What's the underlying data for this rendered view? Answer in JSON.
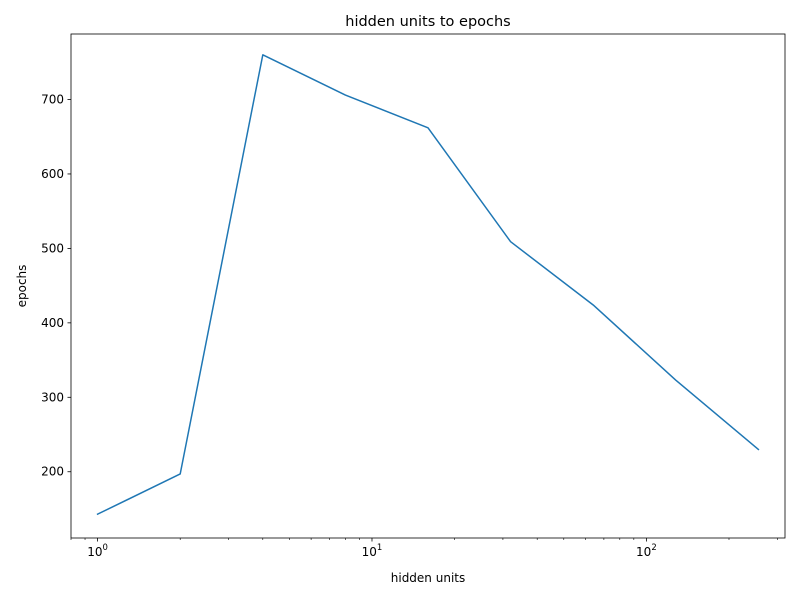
{
  "chart_data": {
    "type": "line",
    "title": "hidden units to epochs",
    "xlabel": "hidden units",
    "ylabel": "epochs",
    "xscale": "log",
    "xlim": [
      0.8,
      320
    ],
    "ylim": [
      111,
      788
    ],
    "grid": false,
    "x_ticks": [
      {
        "value": 1,
        "base": "10",
        "exp": "0"
      },
      {
        "value": 10,
        "base": "10",
        "exp": "1"
      },
      {
        "value": 100,
        "base": "10",
        "exp": "2"
      }
    ],
    "y_ticks": [
      200,
      300,
      400,
      500,
      600,
      700
    ],
    "series": [
      {
        "color": "#1f77b4",
        "x": [
          1,
          2,
          4,
          8,
          16,
          32,
          64,
          128,
          256
        ],
        "y": [
          143,
          197,
          760,
          706,
          662,
          509,
          424,
          323,
          230
        ]
      }
    ]
  }
}
